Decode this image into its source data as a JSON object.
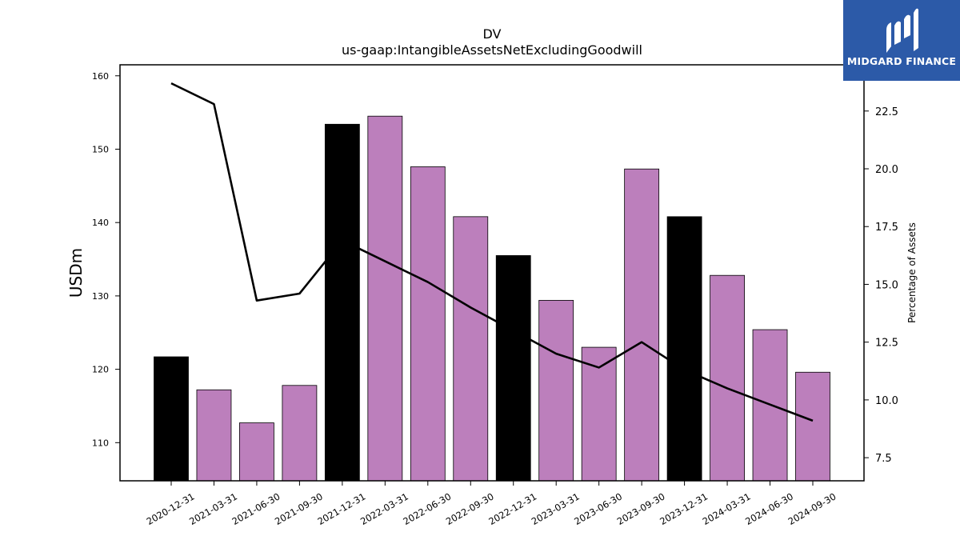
{
  "chart_data": {
    "type": "bar",
    "title": "DV",
    "subtitle": "us-gaap:IntangibleAssetsNetExcludingGoodwill",
    "ylabel": "USDm",
    "y2label": "Percentage of Assets",
    "ylim": [
      104.8,
      161.5
    ],
    "y2lim": [
      6.5,
      24.5
    ],
    "yticks": [
      110,
      120,
      130,
      140,
      150,
      160
    ],
    "y2ticks": [
      7.5,
      10.0,
      12.5,
      15.0,
      17.5,
      20.0,
      22.5
    ],
    "categories": [
      "2020-12-31",
      "2021-03-31",
      "2021-06-30",
      "2021-09-30",
      "2021-12-31",
      "2022-03-31",
      "2022-06-30",
      "2022-09-30",
      "2022-12-31",
      "2023-03-31",
      "2023-06-30",
      "2023-09-30",
      "2023-12-31",
      "2024-03-31",
      "2024-06-30",
      "2024-09-30"
    ],
    "values": [
      121.7,
      117.2,
      112.7,
      117.8,
      153.4,
      154.5,
      147.6,
      140.8,
      135.5,
      129.4,
      123.0,
      147.3,
      140.8,
      132.8,
      125.4,
      119.6
    ],
    "highlight": [
      true,
      false,
      false,
      false,
      true,
      false,
      false,
      false,
      true,
      false,
      false,
      false,
      true,
      false,
      false,
      false
    ],
    "line_values": [
      23.7,
      22.8,
      14.3,
      14.6,
      16.9,
      16.0,
      15.1,
      14.0,
      13.0,
      12.0,
      11.4,
      12.5,
      11.3,
      10.5,
      9.8,
      9.1
    ],
    "colors": {
      "bar": "#bc7fbc",
      "bar_highlight": "#000000",
      "line": "#000000"
    }
  },
  "logo": {
    "text": "MIDGARD FINANCE"
  }
}
